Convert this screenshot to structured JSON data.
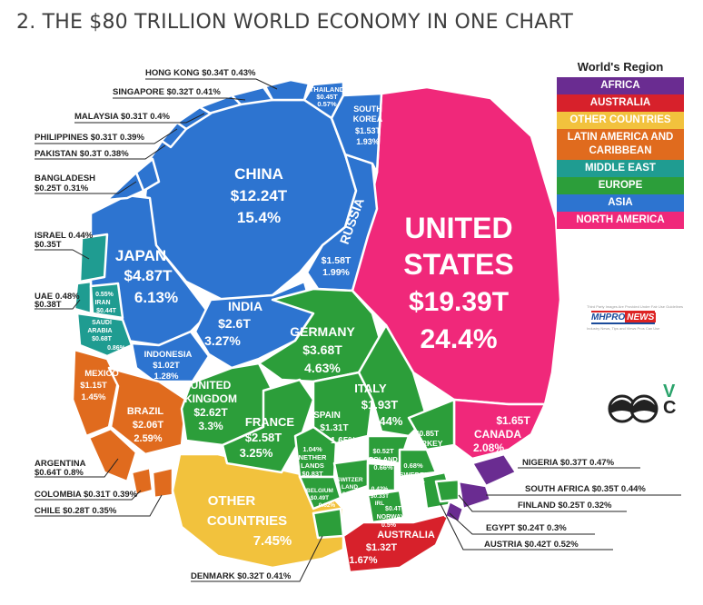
{
  "title": "2. THE $80 TRILLION WORLD ECONOMY IN ONE CHART",
  "legend": {
    "title": "World's Region",
    "items": [
      {
        "label": "AFRICA",
        "color": "#6a2c91"
      },
      {
        "label": "AUSTRALIA",
        "color": "#d7212b"
      },
      {
        "label": "OTHER COUNTRIES",
        "color": "#f2c23d"
      },
      {
        "label": "LATIN AMERICA AND CARIBBEAN",
        "color": "#e06b1e"
      },
      {
        "label": "MIDDLE EAST",
        "color": "#1f9c91"
      },
      {
        "label": "EUROPE",
        "color": "#2c9e3a"
      },
      {
        "label": "ASIA",
        "color": "#2d74d0"
      },
      {
        "label": "NORTH AMERICA",
        "color": "#f0287a"
      }
    ]
  },
  "watermark": {
    "small_text": "Third Party Images Are Provided Under Fair Use Guidelines",
    "logo": "MHPRO",
    "logo_news": "NEWS",
    "tagline": "Industry News, Tips and Views Pros Can Use"
  },
  "brand_letters": {
    "v": "V",
    "c": "C"
  },
  "chart_data": {
    "type": "voronoi-treemap",
    "title": "2. THE $80 TRILLION WORLD ECONOMY IN ONE CHART",
    "unit": "GDP (USD trillions) and share of world economy",
    "cells": [
      {
        "region": "NORTH AMERICA",
        "name": "UNITED STATES",
        "value": "$19.39T",
        "share": "24.4%"
      },
      {
        "region": "NORTH AMERICA",
        "name": "CANADA",
        "value": "$1.65T",
        "share": "2.08%"
      },
      {
        "region": "ASIA",
        "name": "CHINA",
        "value": "$12.24T",
        "share": "15.4%"
      },
      {
        "region": "ASIA",
        "name": "JAPAN",
        "value": "$4.87T",
        "share": "6.13%"
      },
      {
        "region": "ASIA",
        "name": "INDIA",
        "value": "$2.6T",
        "share": "3.27%"
      },
      {
        "region": "ASIA",
        "name": "RUSSIA",
        "value": "$1.58T",
        "share": "1.99%"
      },
      {
        "region": "ASIA",
        "name": "SOUTH KOREA",
        "value": "$1.53T",
        "share": "1.93%"
      },
      {
        "region": "ASIA",
        "name": "INDONESIA",
        "value": "$1.02T",
        "share": "1.28%"
      },
      {
        "region": "ASIA",
        "name": "THAILAND",
        "value": "$0.45T",
        "share": "0.57%"
      },
      {
        "region": "ASIA",
        "name": "HONG KONG",
        "value": "$0.34T",
        "share": "0.43%"
      },
      {
        "region": "ASIA",
        "name": "SINGAPORE",
        "value": "$0.32T",
        "share": "0.41%"
      },
      {
        "region": "ASIA",
        "name": "MALAYSIA",
        "value": "$0.31T",
        "share": "0.4%"
      },
      {
        "region": "ASIA",
        "name": "PHILIPPINES",
        "value": "$0.31T",
        "share": "0.39%"
      },
      {
        "region": "ASIA",
        "name": "PAKISTAN",
        "value": "$0.3T",
        "share": "0.38%"
      },
      {
        "region": "ASIA",
        "name": "BANGLADESH",
        "value": "$0.25T",
        "share": "0.31%"
      },
      {
        "region": "EUROPE",
        "name": "GERMANY",
        "value": "$3.68T",
        "share": "4.63%"
      },
      {
        "region": "EUROPE",
        "name": "UNITED KINGDOM",
        "value": "$2.62T",
        "share": "3.3%"
      },
      {
        "region": "EUROPE",
        "name": "FRANCE",
        "value": "$2.58T",
        "share": "3.25%"
      },
      {
        "region": "EUROPE",
        "name": "ITALY",
        "value": "$1.93T",
        "share": "2.44%"
      },
      {
        "region": "EUROPE",
        "name": "SPAIN",
        "value": "$1.31T",
        "share": "1.65%"
      },
      {
        "region": "EUROPE",
        "name": "NETHERLANDS",
        "value": "$0.83T",
        "share": "1.04%"
      },
      {
        "region": "EUROPE",
        "name": "TURKEY",
        "value": "$0.85T",
        "share": "1.07%"
      },
      {
        "region": "EUROPE",
        "name": "SWITZERLAND",
        "value": "$0.68T",
        "share": "0.85%"
      },
      {
        "region": "EUROPE",
        "name": "POLAND",
        "value": "$0.52T",
        "share": "0.66%"
      },
      {
        "region": "EUROPE",
        "name": "SWEDEN",
        "value": "$0.54T",
        "share": "0.68%"
      },
      {
        "region": "EUROPE",
        "name": "BELGIUM",
        "value": "$0.49T",
        "share": "0.62%"
      },
      {
        "region": "EUROPE",
        "name": "IRELAND",
        "value": "$0.33T",
        "share": "0.42%"
      },
      {
        "region": "EUROPE",
        "name": "NORWAY",
        "value": "$0.4T",
        "share": "0.5%"
      },
      {
        "region": "EUROPE",
        "name": "AUSTRIA",
        "value": "$0.42T",
        "share": "0.52%"
      },
      {
        "region": "EUROPE",
        "name": "DENMARK",
        "value": "$0.32T",
        "share": "0.41%"
      },
      {
        "region": "EUROPE",
        "name": "FINLAND",
        "value": "$0.25T",
        "share": "0.32%"
      },
      {
        "region": "MIDDLE EAST",
        "name": "SAUDI ARABIA",
        "value": "$0.68T",
        "share": "0.86%"
      },
      {
        "region": "MIDDLE EAST",
        "name": "IRAN",
        "value": "$0.44T",
        "share": "0.55%"
      },
      {
        "region": "MIDDLE EAST",
        "name": "UAE",
        "value": "$0.38T",
        "share": "0.48%"
      },
      {
        "region": "MIDDLE EAST",
        "name": "ISRAEL",
        "value": "$0.35T",
        "share": "0.44%"
      },
      {
        "region": "MIDDLE EAST",
        "name": "EGYPT",
        "value": "$0.24T",
        "share": "0.3%"
      },
      {
        "region": "LATIN AMERICA AND CARIBBEAN",
        "name": "BRAZIL",
        "value": "$2.06T",
        "share": "2.59%"
      },
      {
        "region": "LATIN AMERICA AND CARIBBEAN",
        "name": "MEXICO",
        "value": "$1.15T",
        "share": "1.45%"
      },
      {
        "region": "LATIN AMERICA AND CARIBBEAN",
        "name": "ARGENTINA",
        "value": "$0.64T",
        "share": "0.8%"
      },
      {
        "region": "LATIN AMERICA AND CARIBBEAN",
        "name": "COLOMBIA",
        "value": "$0.31T",
        "share": "0.39%"
      },
      {
        "region": "LATIN AMERICA AND CARIBBEAN",
        "name": "CHILE",
        "value": "$0.28T",
        "share": "0.35%"
      },
      {
        "region": "OTHER COUNTRIES",
        "name": "OTHER COUNTRIES",
        "value": "",
        "share": "7.45%"
      },
      {
        "region": "AUSTRALIA",
        "name": "AUSTRALIA",
        "value": "$1.32T",
        "share": "1.67%"
      },
      {
        "region": "AFRICA",
        "name": "NIGERIA",
        "value": "$0.37T",
        "share": "0.47%"
      },
      {
        "region": "AFRICA",
        "name": "SOUTH AFRICA",
        "value": "$0.35T",
        "share": "0.44%"
      }
    ],
    "labels": {
      "us_name_1": "UNITED",
      "us_name_2": "STATES",
      "us_value": "$19.39T",
      "us_share": "24.4%",
      "china_name": "CHINA",
      "china_value": "$12.24T",
      "china_share": "15.4%",
      "japan_name": "JAPAN",
      "japan_value": "$4.87T",
      "japan_share": "6.13%",
      "india_name": "INDIA",
      "india_value": "$2.6T",
      "india_share": "3.27%",
      "russia_name": "RUSSIA",
      "russia_value": "$1.58T",
      "russia_share": "1.99%",
      "korea_1": "SOUTH",
      "korea_2": "KOREA",
      "korea_value": "$1.53T",
      "korea_share": "1.93%",
      "thai_name": "THAILAND",
      "thai_value": "$0.45T",
      "thai_share": "0.57%",
      "indo_name": "INDONESIA",
      "indo_value": "$1.02T",
      "indo_share": "1.28%",
      "germany_name": "GERMANY",
      "germany_value": "$3.68T",
      "germany_share": "4.63%",
      "uk_1": "UNITED",
      "uk_2": "KINGDOM",
      "uk_value": "$2.62T",
      "uk_share": "3.3%",
      "france_name": "FRANCE",
      "france_value": "$2.58T",
      "france_share": "3.25%",
      "italy_name": "ITALY",
      "italy_value": "$1.93T",
      "italy_share": "2.44%",
      "spain_name": "SPAIN",
      "spain_value": "$1.31T",
      "spain_share": "1.65%",
      "neth_share": "1.04%",
      "neth_1": "NETHER",
      "neth_2": "LANDS",
      "neth_value": "$0.83T",
      "turkey_value": "$0.85T",
      "turkey_name": "TURKEY",
      "turkey_share": "1.07%",
      "poland_value": "$0.52T",
      "poland_name": "POLAND",
      "poland_share": "0.66%",
      "sweden_share": "0.68%",
      "sweden_name": "SWEDEN",
      "sweden_value": "$0.54T",
      "swiss_1": "SWITZER",
      "swiss_2": "LAND",
      "swiss_value": "$0.68T",
      "swiss_share": "0.85%",
      "belgium_name": "BELGIUM",
      "belgium_value": "$0.49T",
      "belgium_share": "0.62%",
      "ireland_share": "0.42%",
      "ireland_value": "$0.33T",
      "ireland_name": "IRL",
      "norway_value": "$0.4T",
      "norway_name": "NORWAY",
      "norway_share": "0.5%",
      "canada_value": "$1.65T",
      "canada_name": "CANADA",
      "canada_share": "2.08%",
      "brazil_name": "BRAZIL",
      "brazil_value": "$2.06T",
      "brazil_share": "2.59%",
      "mexico_name": "MEXICO",
      "mexico_value": "$1.15T",
      "mexico_share": "1.45%",
      "other_1": "OTHER",
      "other_2": "COUNTRIES",
      "other_share": "7.45%",
      "aus_name": "AUSTRALIA",
      "aus_value": "$1.32T",
      "aus_share": "1.67%",
      "iran_share": "0.55%",
      "iran_name": "IRAN",
      "iran_value": "$0.44T",
      "saudi_1": "SAUDI",
      "saudi_2": "ARABIA",
      "saudi_value": "$0.68T",
      "saudi_share": "0.86%"
    },
    "callouts": {
      "hongkong": "HONG KONG $0.34T 0.43%",
      "singapore": "SINGAPORE $0.32T 0.41%",
      "malaysia": "MALAYSIA $0.31T  0.4%",
      "philippines": "PHILIPPINES $0.31T 0.39%",
      "pakistan": "PAKISTAN $0.3T 0.38%",
      "bangladesh_1": "BANGLADESH",
      "bangladesh_2": "$0.25T 0.31%",
      "israel_1": "ISRAEL 0.44%",
      "israel_2": "$0.35T",
      "uae_1": "UAE 0.48%",
      "uae_2": "$0.38T",
      "argentina_1": "ARGENTINA",
      "argentina_2": "$0.64T 0.8%",
      "colombia": "COLOMBIA $0.31T 0.39%",
      "chile": "CHILE $0.28T 0.35%",
      "denmark": "DENMARK $0.32T 0.41%",
      "nigeria": "NIGERIA $0.37T 0.47%",
      "southafrica": "SOUTH AFRICA $0.35T 0.44%",
      "finland": "FINLAND $0.25T  0.32%",
      "egypt": "EGYPT $0.24T  0.3%",
      "austria": "AUSTRIA $0.42T  0.52%"
    }
  }
}
